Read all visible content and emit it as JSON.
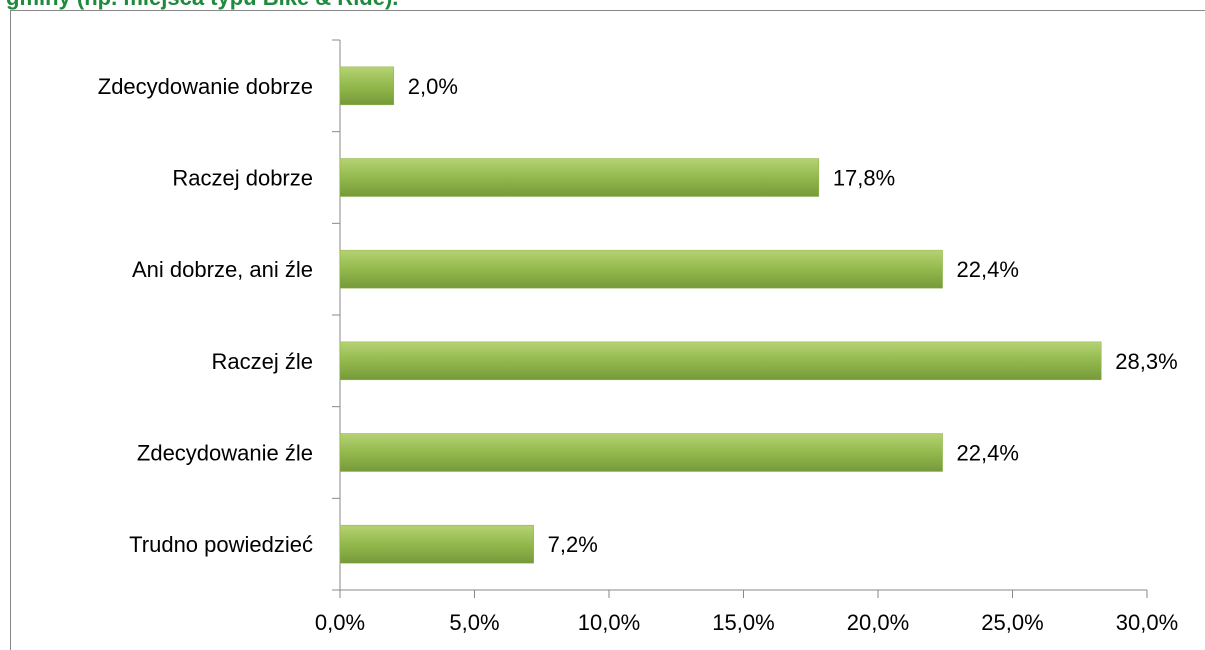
{
  "chart_data": {
    "type": "bar",
    "orientation": "horizontal",
    "title": "gminy (np. miejsca typu Bike & Ride).",
    "categories": [
      "Zdecydowanie dobrze",
      "Raczej dobrze",
      "Ani dobrze, ani źle",
      "Raczej źle",
      "Zdecydowanie źle",
      "Trudno powiedzieć"
    ],
    "values": [
      2.0,
      17.8,
      22.4,
      28.3,
      22.4,
      7.2
    ],
    "value_labels": [
      "2,0%",
      "17,8%",
      "22,4%",
      "28,3%",
      "22,4%",
      "7,2%"
    ],
    "color": "#8fb34a",
    "xlim": [
      0,
      30
    ],
    "xticks": [
      {
        "value": 0,
        "label": "0,0%"
      },
      {
        "value": 5,
        "label": "5,0%"
      },
      {
        "value": 10,
        "label": "10,0%"
      },
      {
        "value": 15,
        "label": "15,0%"
      },
      {
        "value": 20,
        "label": "20,0%"
      },
      {
        "value": 25,
        "label": "25,0%"
      },
      {
        "value": 30,
        "label": "30,0%"
      }
    ],
    "grid": false
  }
}
